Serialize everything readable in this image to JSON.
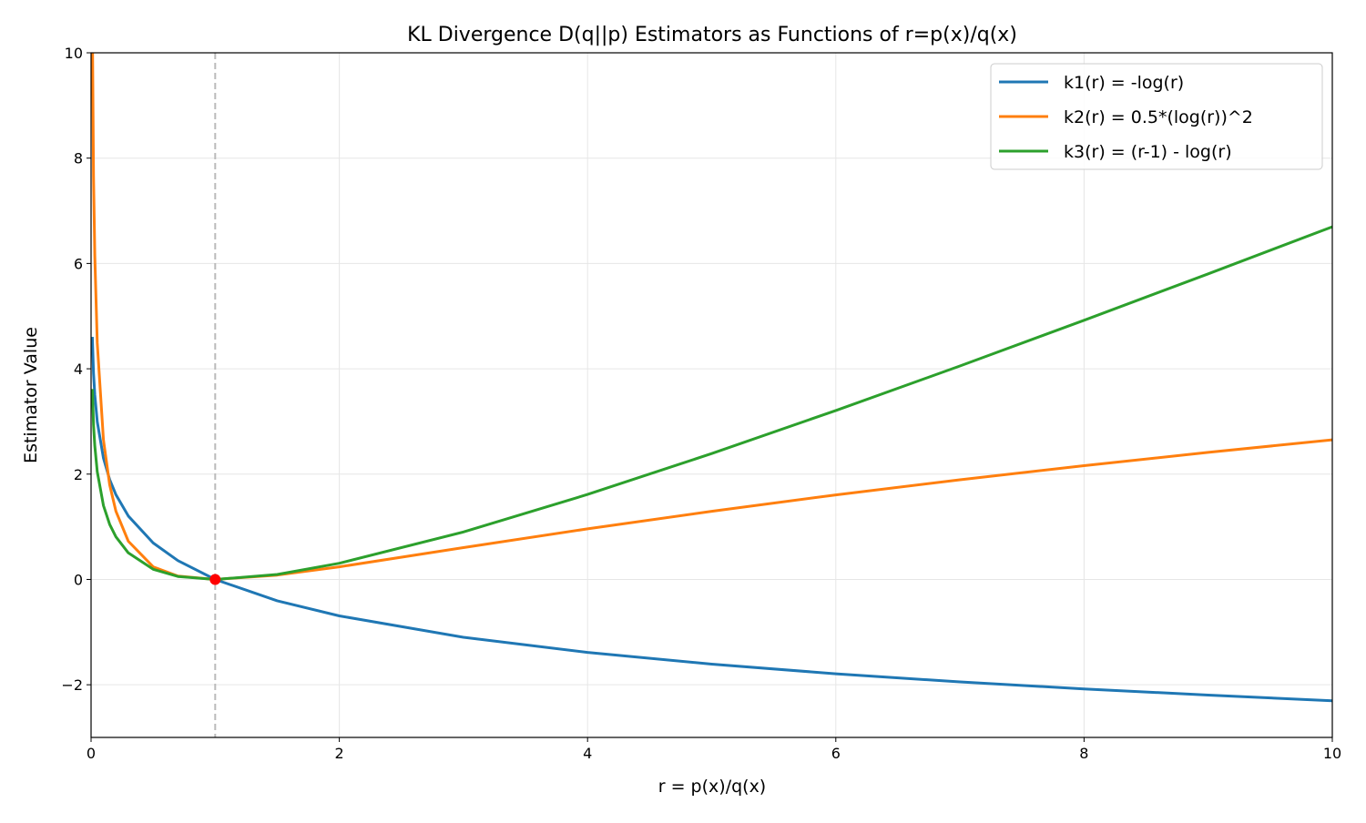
{
  "chart_data": {
    "type": "line",
    "title": "KL Divergence D(q||p) Estimators as Functions of r=p(x)/q(x)",
    "xlabel": "r = p(x)/q(x)",
    "ylabel": "Estimator Value",
    "xlim": [
      0,
      10
    ],
    "ylim": [
      -3,
      10
    ],
    "xticks": [
      0,
      2,
      4,
      6,
      8,
      10
    ],
    "xtick_labels": [
      "0",
      "2",
      "4",
      "6",
      "8",
      "10"
    ],
    "yticks": [
      -2,
      0,
      2,
      4,
      6,
      8,
      10
    ],
    "ytick_labels": [
      "−2",
      "0",
      "2",
      "4",
      "6",
      "8",
      "10"
    ],
    "grid": true,
    "legend_position": "top-right",
    "x": [
      0.01,
      0.02,
      0.03,
      0.05,
      0.1,
      0.15,
      0.2,
      0.3,
      0.5,
      0.7,
      1,
      1.5,
      2,
      3,
      4,
      5,
      6,
      7,
      8,
      9,
      10
    ],
    "series": [
      {
        "name": "k1(r) = -log(r)",
        "color": "#1f77b4",
        "values": [
          4.605,
          3.912,
          3.507,
          2.996,
          2.303,
          1.897,
          1.609,
          1.204,
          0.693,
          0.357,
          0,
          -0.405,
          -0.693,
          -1.099,
          -1.386,
          -1.609,
          -1.792,
          -1.946,
          -2.079,
          -2.197,
          -2.303
        ]
      },
      {
        "name": "k2(r) = 0.5*(log(r))^2",
        "color": "#ff7f0e",
        "values": [
          10.6,
          7.65,
          6.149,
          4.49,
          2.65,
          1.799,
          1.295,
          0.725,
          0.24,
          0.064,
          0,
          0.082,
          0.24,
          0.604,
          0.961,
          1.295,
          1.605,
          1.893,
          2.161,
          2.413,
          2.651
        ]
      },
      {
        "name": "k3(r) = (r-1) - log(r)",
        "color": "#2ca02c",
        "values": [
          3.615,
          2.932,
          2.537,
          2.046,
          1.403,
          1.047,
          0.809,
          0.504,
          0.193,
          0.057,
          0,
          0.095,
          0.307,
          0.901,
          1.614,
          2.391,
          3.208,
          4.054,
          4.921,
          5.803,
          6.697
        ]
      }
    ],
    "vline": {
      "x": 1,
      "color": "#bbbbbb",
      "style": "dashed"
    },
    "marker": {
      "x": 1,
      "y": 0,
      "color": "#ff0000"
    }
  }
}
